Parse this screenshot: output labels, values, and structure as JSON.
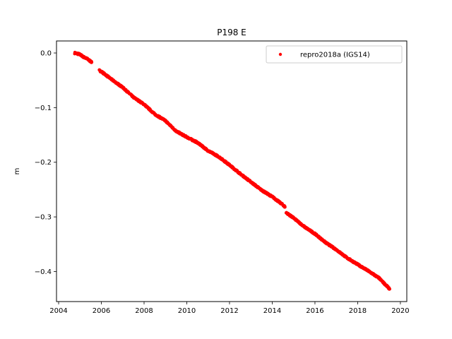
{
  "chart_data": {
    "type": "scatter",
    "title": "P198 E",
    "xlabel": "",
    "ylabel": "m",
    "xlim": [
      2003.9,
      2020.3
    ],
    "ylim": [
      -0.455,
      0.022
    ],
    "xticks": [
      2004,
      2006,
      2008,
      2010,
      2012,
      2014,
      2016,
      2018,
      2020
    ],
    "yticks": [
      0.0,
      -0.1,
      -0.2,
      -0.3,
      -0.4
    ],
    "ytick_labels": [
      "0.0",
      "−0.1",
      "−0.2",
      "−0.3",
      "−0.4"
    ],
    "grid": false,
    "legend_position": "top-right",
    "series": [
      {
        "name": "repro2018a (IGS14)",
        "color": "#ff0000",
        "marker": "dot",
        "segments": [
          {
            "x": [
              2004.75,
              2004.85,
              2004.95,
              2005.05,
              2005.15,
              2005.25,
              2005.35,
              2005.45,
              2005.55
            ],
            "y": [
              0.0,
              -0.001,
              -0.002,
              -0.004,
              -0.007,
              -0.009,
              -0.011,
              -0.014,
              -0.017
            ]
          },
          {
            "x": [
              2005.9,
              2006.0,
              2006.5,
              2007.0,
              2007.5,
              2008.0,
              2008.5,
              2009.0,
              2009.5,
              2010.0,
              2010.5,
              2011.0,
              2011.5,
              2012.0,
              2012.5,
              2013.0,
              2013.5,
              2014.0,
              2014.5,
              2014.6
            ],
            "y": [
              -0.032,
              -0.034,
              -0.049,
              -0.063,
              -0.081,
              -0.094,
              -0.112,
              -0.124,
              -0.143,
              -0.154,
              -0.164,
              -0.179,
              -0.19,
              -0.205,
              -0.221,
              -0.236,
              -0.251,
              -0.263,
              -0.278,
              -0.282
            ]
          },
          {
            "x": [
              2014.65,
              2015.0,
              2015.5,
              2016.0,
              2016.5,
              2017.0,
              2017.5,
              2018.0,
              2018.5,
              2019.0,
              2019.5
            ],
            "y": [
              -0.292,
              -0.302,
              -0.318,
              -0.331,
              -0.347,
              -0.36,
              -0.375,
              -0.387,
              -0.399,
              -0.412,
              -0.432
            ]
          }
        ]
      }
    ]
  }
}
